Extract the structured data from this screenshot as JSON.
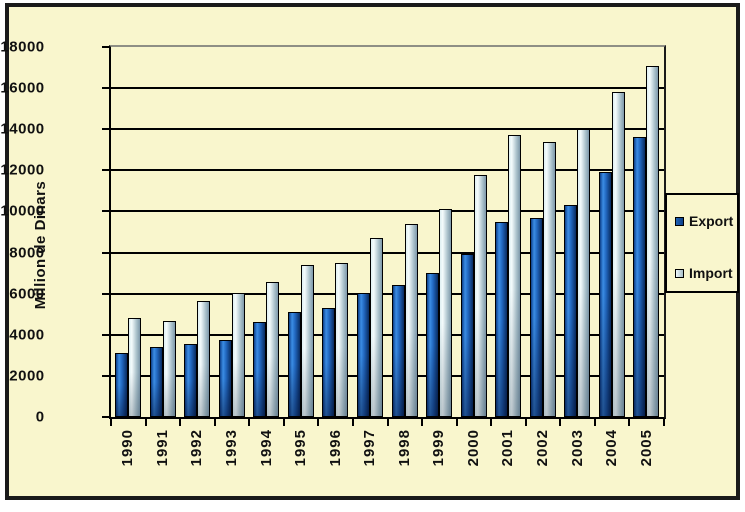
{
  "chart_data": {
    "type": "bar",
    "title": "",
    "ylabel": "Million de Dinars",
    "xlabel": "",
    "ylim": [
      0,
      18000
    ],
    "ytick_step": 2000,
    "grid": true,
    "legend_position": "right",
    "categories": [
      "1990",
      "1991",
      "1992",
      "1993",
      "1994",
      "1995",
      "1996",
      "1997",
      "1998",
      "1999",
      "2000",
      "2001",
      "2002",
      "2003",
      "2004",
      "2005"
    ],
    "series": [
      {
        "name": "Export",
        "values": [
          3100,
          3400,
          3550,
          3750,
          4600,
          5100,
          5300,
          6050,
          6400,
          7000,
          7950,
          9500,
          9700,
          10300,
          11900,
          13600
        ]
      },
      {
        "name": "Import",
        "values": [
          4800,
          4650,
          5650,
          6050,
          6550,
          7400,
          7500,
          8700,
          9400,
          10100,
          11750,
          13700,
          13400,
          14000,
          15800,
          17100
        ]
      }
    ]
  },
  "colors": {
    "background": "#f9f6cd",
    "frame_border": "#1a1a1a",
    "gridline": "#000000",
    "export_bar": "#2268c0",
    "import_bar": "#cfe2ea",
    "text": "#111111"
  },
  "legend": {
    "items": [
      {
        "label": "Export",
        "swatch": "export"
      },
      {
        "label": "Import",
        "swatch": "import"
      }
    ]
  }
}
